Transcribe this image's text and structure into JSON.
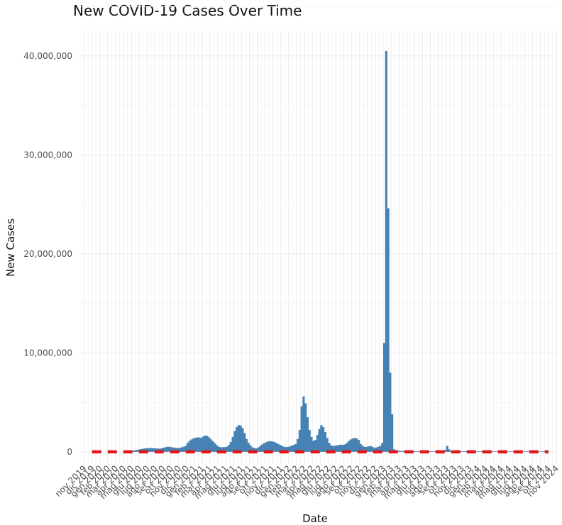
{
  "chart_data": {
    "type": "bar",
    "title": "New COVID-19 Cases Over Time",
    "xlabel": "Date",
    "ylabel": "New Cases",
    "ylim": [
      -1300000,
      42500000
    ],
    "yticks": [
      0,
      10000000,
      20000000,
      30000000,
      40000000
    ],
    "ytick_labels": [
      "0",
      "10,000,000",
      "20,000,000",
      "30,000,000",
      "40,000,000"
    ],
    "x_tick_labels": [
      "nov 2019",
      "dic 2019",
      "gen 2020",
      "feb 2020",
      "mar 2020",
      "apr 2020",
      "mag 2020",
      "giu 2020",
      "lug 2020",
      "ago 2020",
      "set 2020",
      "ott 2020",
      "nov 2020",
      "dic 2020",
      "gen 2021",
      "feb 2021",
      "mar 2021",
      "apr 2021",
      "mag 2021",
      "giu 2021",
      "lug 2021",
      "ago 2021",
      "set 2021",
      "ott 2021",
      "nov 2021",
      "dic 2021",
      "gen 2022",
      "feb 2022",
      "mar 2022",
      "apr 2022",
      "mag 2022",
      "giu 2022",
      "lug 2022",
      "ago 2022",
      "set 2022",
      "ott 2022",
      "nov 2022",
      "dic 2022",
      "gen 2023",
      "feb 2023",
      "mar 2023",
      "apr 2023",
      "mag 2023",
      "giu 2023",
      "lug 2023",
      "ago 2023",
      "set 2023",
      "ott 2023",
      "nov 2023",
      "dic 2023",
      "gen 2024",
      "feb 2024",
      "mar 2024",
      "apr 2024",
      "mag 2024",
      "giu 2024",
      "lug 2024",
      "ago 2024",
      "set 2024",
      "ott 2024",
      "nov 2024"
    ],
    "bar_start_month_index": 1,
    "bars_per_month": 4,
    "series": [
      {
        "values": [
          0,
          0,
          0,
          0,
          0,
          0,
          0,
          0,
          0,
          0,
          0,
          0,
          0,
          0,
          0,
          0,
          50000,
          80000,
          100000,
          120000,
          130000,
          150000,
          180000,
          220000,
          260000,
          300000,
          330000,
          360000,
          380000,
          390000,
          380000,
          360000,
          340000,
          330000,
          320000,
          360000,
          420000,
          480000,
          520000,
          500000,
          470000,
          430000,
          390000,
          380000,
          400000,
          450000,
          520000,
          600000,
          900000,
          1100000,
          1250000,
          1350000,
          1420000,
          1460000,
          1450000,
          1430000,
          1550000,
          1650000,
          1600000,
          1450000,
          1250000,
          1050000,
          850000,
          650000,
          500000,
          460000,
          470000,
          480000,
          520000,
          700000,
          1000000,
          1500000,
          2100000,
          2500000,
          2700000,
          2650000,
          2400000,
          1900000,
          1300000,
          900000,
          650000,
          450000,
          380000,
          350000,
          450000,
          600000,
          750000,
          880000,
          980000,
          1050000,
          1080000,
          1050000,
          1000000,
          900000,
          800000,
          700000,
          600000,
          520000,
          480000,
          500000,
          550000,
          620000,
          700000,
          800000,
          1300000,
          2200000,
          4600000,
          5600000,
          4900000,
          3500000,
          2200000,
          1500000,
          1100000,
          1200000,
          1700000,
          2300000,
          2700000,
          2500000,
          2000000,
          1400000,
          900000,
          650000,
          600000,
          620000,
          650000,
          700000,
          720000,
          700000,
          750000,
          900000,
          1100000,
          1250000,
          1350000,
          1400000,
          1350000,
          1200000,
          800000,
          600000,
          500000,
          500000,
          550000,
          600000,
          500000,
          400000,
          450000,
          500000,
          600000,
          900000,
          11000000,
          40500000,
          24600000,
          8000000,
          3800000,
          250000,
          150000,
          120000,
          100000,
          90000,
          80000,
          70000,
          60000,
          60000,
          60000,
          60000,
          55000,
          55000,
          55000,
          55000,
          50000,
          50000,
          50000,
          50000,
          50000,
          50000,
          50000,
          50000,
          50000,
          50000,
          60000,
          200000,
          600000,
          250000,
          80000,
          60000,
          55000,
          55000,
          55000,
          55000,
          55000,
          55000,
          55000,
          55000,
          50000,
          50000,
          50000,
          50000,
          50000,
          50000,
          50000,
          50000,
          45000,
          45000,
          45000,
          45000,
          45000,
          45000,
          45000,
          45000,
          40000,
          40000,
          40000,
          40000,
          40000,
          40000,
          40000,
          40000,
          40000,
          40000,
          40000,
          40000,
          40000,
          40000,
          40000,
          40000,
          40000,
          40000,
          40000,
          40000,
          40000,
          40000,
          40000,
          40000
        ]
      }
    ],
    "baseline": {
      "type": "dashed",
      "color": "#e3161b",
      "value": 0
    },
    "colors": {
      "bar": "#4682b4",
      "baseline": "#e3161b"
    },
    "grid": true
  }
}
